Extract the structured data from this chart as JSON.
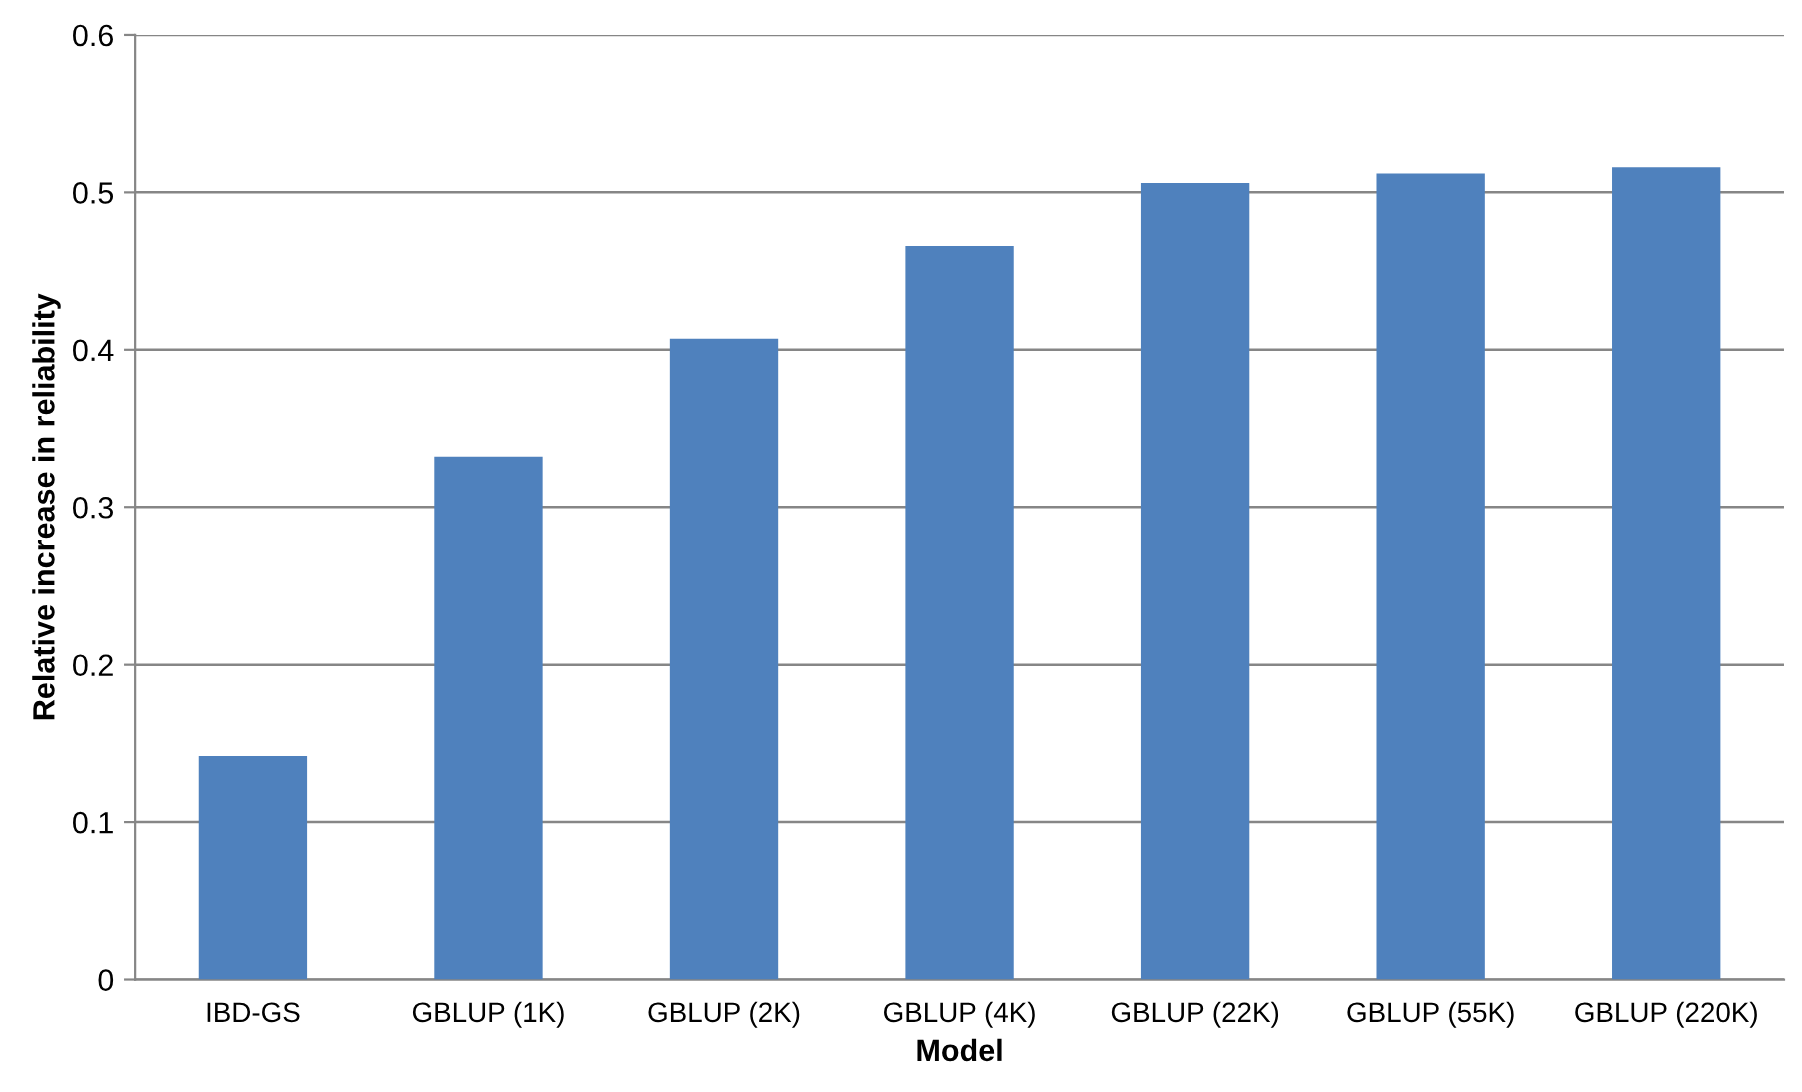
{
  "chart_data": {
    "type": "bar",
    "xlabel": "Model",
    "ylabel": "Relative increase in reliability",
    "categories": [
      "IBD-GS",
      "GBLUP (1K)",
      "GBLUP (2K)",
      "GBLUP (4K)",
      "GBLUP (22K)",
      "GBLUP (55K)",
      "GBLUP (220K)"
    ],
    "values": [
      0.142,
      0.332,
      0.407,
      0.466,
      0.506,
      0.512,
      0.516
    ],
    "color": "#4f81bd",
    "ylim": [
      0,
      0.6
    ],
    "yticks": [
      {
        "value": 0,
        "label": "0"
      },
      0.1,
      0.2,
      0.3,
      0.4,
      0.5,
      0.6
    ],
    "grid": "y",
    "legend": false
  }
}
